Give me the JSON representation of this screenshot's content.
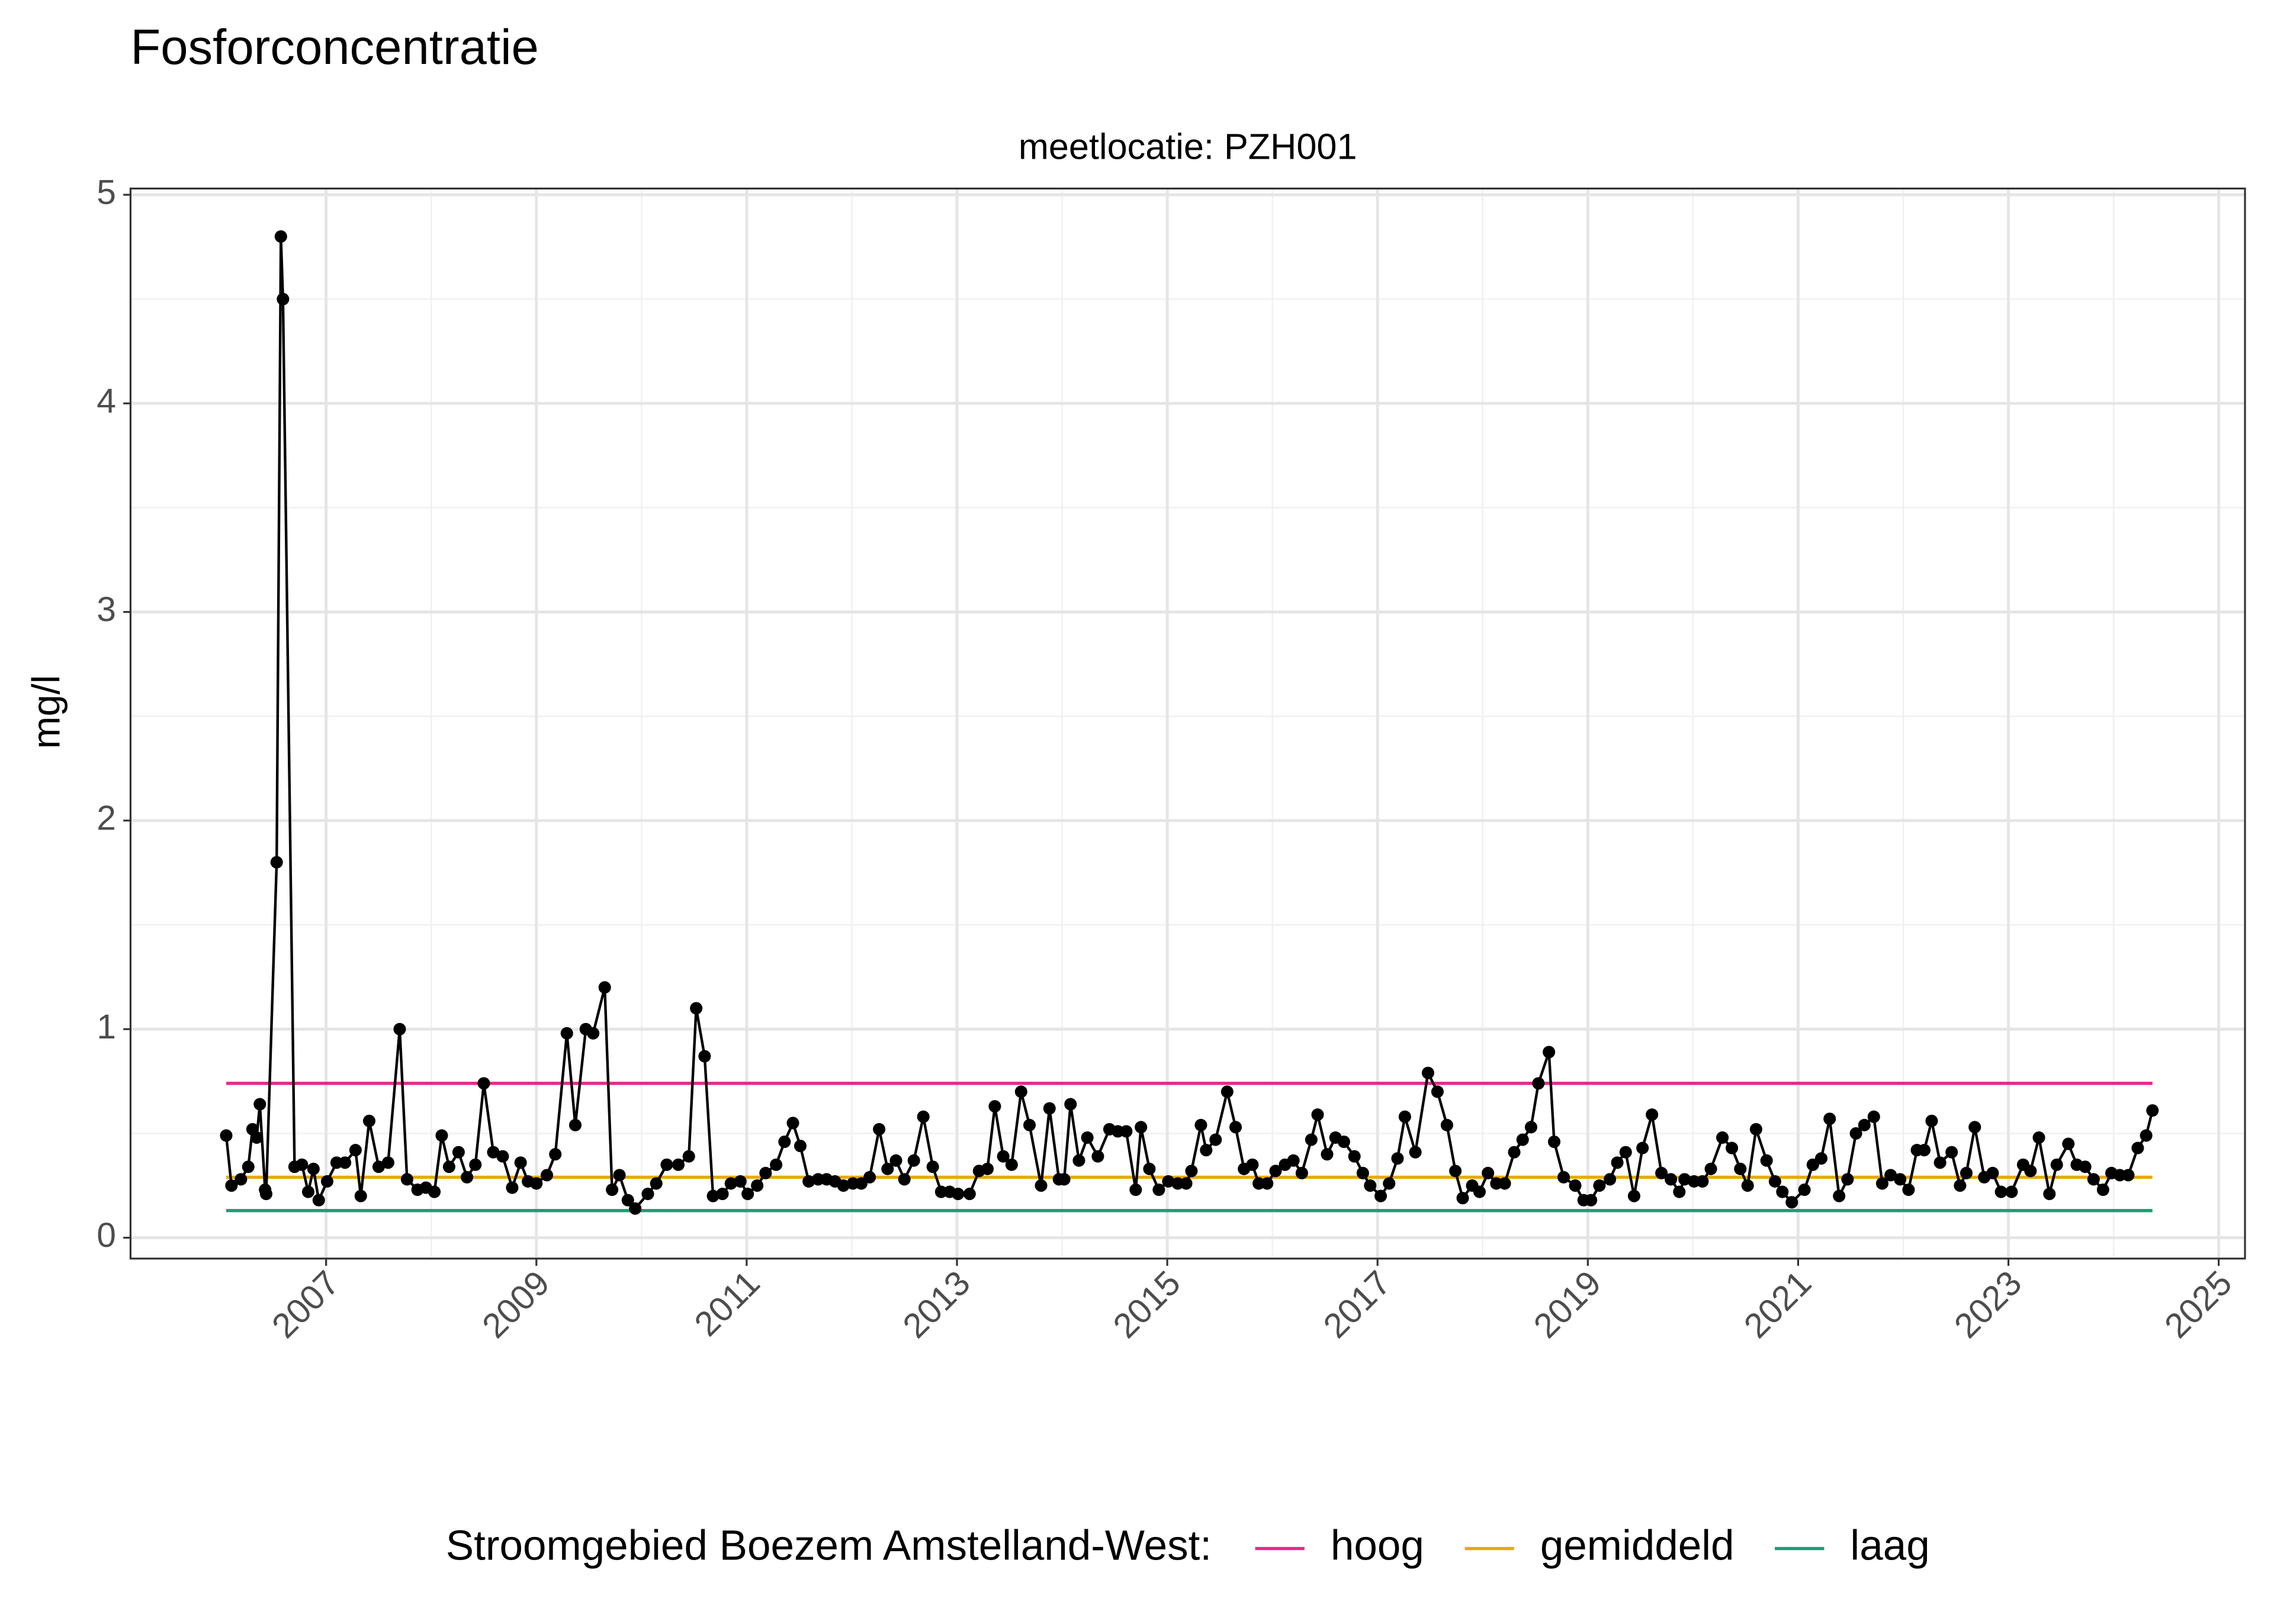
{
  "chart_data": {
    "type": "line",
    "title": "Fosforconcentratie",
    "subtitle": "meetlocatie: PZH001",
    "y_label": "mg/l",
    "legend_title": "Stroomgebied Boezem Amstelland-West:",
    "legend_position": "bottom",
    "grid": true,
    "xlim": [
      2005.14,
      2025.25
    ],
    "xticks": [
      2007,
      2009,
      2011,
      2013,
      2015,
      2017,
      2019,
      2021,
      2023,
      2025
    ],
    "ylim": [
      -0.1,
      5.03
    ],
    "yticks": [
      0,
      1,
      2,
      3,
      4,
      5
    ],
    "x": [
      2006.05,
      2006.1,
      2006.19,
      2006.26,
      2006.3,
      2006.34,
      2006.37,
      2006.42,
      2006.43,
      2006.53,
      2006.57,
      2006.59,
      2006.7,
      2006.77,
      2006.83,
      2006.88,
      2006.93,
      2007.01,
      2007.1,
      2007.18,
      2007.28,
      2007.33,
      2007.41,
      2007.5,
      2007.59,
      2007.7,
      2007.77,
      2007.87,
      2007.95,
      2008.03,
      2008.1,
      2008.17,
      2008.26,
      2008.34,
      2008.42,
      2008.5,
      2008.59,
      2008.68,
      2008.77,
      2008.85,
      2008.92,
      2009.0,
      2009.1,
      2009.18,
      2009.29,
      2009.37,
      2009.47,
      2009.54,
      2009.65,
      2009.72,
      2009.79,
      2009.87,
      2009.94,
      2010.06,
      2010.14,
      2010.24,
      2010.35,
      2010.45,
      2010.52,
      2010.6,
      2010.68,
      2010.77,
      2010.85,
      2010.94,
      2011.01,
      2011.1,
      2011.18,
      2011.28,
      2011.36,
      2011.44,
      2011.51,
      2011.59,
      2011.68,
      2011.76,
      2011.84,
      2011.92,
      2012.01,
      2012.09,
      2012.17,
      2012.26,
      2012.34,
      2012.42,
      2012.5,
      2012.59,
      2012.68,
      2012.77,
      2012.85,
      2012.93,
      2013.01,
      2013.12,
      2013.21,
      2013.29,
      2013.36,
      2013.44,
      2013.52,
      2013.61,
      2013.69,
      2013.8,
      2013.88,
      2013.97,
      2014.02,
      2014.08,
      2014.16,
      2014.24,
      2014.34,
      2014.45,
      2014.53,
      2014.61,
      2014.7,
      2014.75,
      2014.83,
      2014.92,
      2015.01,
      2015.1,
      2015.18,
      2015.23,
      2015.32,
      2015.37,
      2015.46,
      2015.57,
      2015.65,
      2015.73,
      2015.81,
      2015.87,
      2015.95,
      2016.03,
      2016.12,
      2016.2,
      2016.28,
      2016.37,
      2016.43,
      2016.52,
      2016.6,
      2016.68,
      2016.78,
      2016.86,
      2016.93,
      2017.03,
      2017.11,
      2017.19,
      2017.26,
      2017.36,
      2017.48,
      2017.57,
      2017.66,
      2017.74,
      2017.81,
      2017.9,
      2017.97,
      2018.05,
      2018.13,
      2018.21,
      2018.3,
      2018.38,
      2018.46,
      2018.53,
      2018.63,
      2018.68,
      2018.77,
      2018.88,
      2018.96,
      2019.03,
      2019.11,
      2019.21,
      2019.28,
      2019.36,
      2019.44,
      2019.52,
      2019.61,
      2019.7,
      2019.79,
      2019.87,
      2019.92,
      2020.01,
      2020.09,
      2020.17,
      2020.28,
      2020.37,
      2020.45,
      2020.52,
      2020.6,
      2020.7,
      2020.78,
      2020.85,
      2020.94,
      2021.06,
      2021.14,
      2021.22,
      2021.3,
      2021.39,
      2021.47,
      2021.55,
      2021.63,
      2021.72,
      2021.8,
      2021.88,
      2021.97,
      2022.05,
      2022.13,
      2022.2,
      2022.27,
      2022.35,
      2022.46,
      2022.54,
      2022.6,
      2022.68,
      2022.77,
      2022.85,
      2022.93,
      2023.03,
      2023.14,
      2023.21,
      2023.29,
      2023.39,
      2023.46,
      2023.57,
      2023.65,
      2023.73,
      2023.81,
      2023.9,
      2023.98,
      2024.06,
      2024.14,
      2024.23,
      2024.31,
      2024.37
    ],
    "series": [
      {
        "color": "#000000",
        "values": [
          0.49,
          0.25,
          0.28,
          0.34,
          0.52,
          0.48,
          0.64,
          0.23,
          0.21,
          1.8,
          4.8,
          4.5,
          0.34,
          0.35,
          0.22,
          0.33,
          0.18,
          0.27,
          0.36,
          0.36,
          0.42,
          0.2,
          0.56,
          0.34,
          0.36,
          1.0,
          0.28,
          0.23,
          0.24,
          0.22,
          0.49,
          0.34,
          0.41,
          0.29,
          0.35,
          0.74,
          0.41,
          0.39,
          0.24,
          0.36,
          0.27,
          0.26,
          0.3,
          0.4,
          0.98,
          0.54,
          1.0,
          0.98,
          1.2,
          0.23,
          0.3,
          0.18,
          0.14,
          0.21,
          0.26,
          0.35,
          0.35,
          0.39,
          1.1,
          0.87,
          0.2,
          0.21,
          0.26,
          0.27,
          0.21,
          0.25,
          0.31,
          0.35,
          0.46,
          0.55,
          0.44,
          0.27,
          0.28,
          0.28,
          0.27,
          0.25,
          0.26,
          0.26,
          0.29,
          0.52,
          0.33,
          0.37,
          0.28,
          0.37,
          0.58,
          0.34,
          0.22,
          0.22,
          0.21,
          0.21,
          0.32,
          0.33,
          0.63,
          0.39,
          0.35,
          0.7,
          0.54,
          0.25,
          0.62,
          0.28,
          0.28,
          0.64,
          0.37,
          0.48,
          0.39,
          0.52,
          0.51,
          0.51,
          0.23,
          0.53,
          0.33,
          0.23,
          0.27,
          0.26,
          0.26,
          0.32,
          0.54,
          0.42,
          0.47,
          0.7,
          0.53,
          0.33,
          0.35,
          0.26,
          0.26,
          0.32,
          0.35,
          0.37,
          0.31,
          0.47,
          0.59,
          0.4,
          0.48,
          0.46,
          0.39,
          0.31,
          0.25,
          0.2,
          0.26,
          0.38,
          0.58,
          0.41,
          0.79,
          0.7,
          0.54,
          0.32,
          0.19,
          0.25,
          0.22,
          0.31,
          0.26,
          0.26,
          0.41,
          0.47,
          0.53,
          0.74,
          0.89,
          0.46,
          0.29,
          0.25,
          0.18,
          0.18,
          0.25,
          0.28,
          0.36,
          0.41,
          0.2,
          0.43,
          0.59,
          0.31,
          0.28,
          0.22,
          0.28,
          0.27,
          0.27,
          0.33,
          0.48,
          0.43,
          0.33,
          0.25,
          0.52,
          0.37,
          0.27,
          0.22,
          0.17,
          0.23,
          0.35,
          0.38,
          0.57,
          0.2,
          0.28,
          0.5,
          0.54,
          0.58,
          0.26,
          0.3,
          0.28,
          0.23,
          0.42,
          0.42,
          0.56,
          0.36,
          0.41,
          0.25,
          0.31,
          0.53,
          0.29,
          0.31,
          0.22,
          0.22,
          0.35,
          0.32,
          0.48,
          0.21,
          0.35,
          0.45,
          0.35,
          0.34,
          0.28,
          0.23,
          0.31,
          0.3,
          0.3,
          0.43,
          0.49,
          0.61
        ]
      }
    ],
    "reference_lines": [
      {
        "name": "hoog",
        "color": "#e7298a",
        "value": 0.74
      },
      {
        "name": "gemiddeld",
        "color": "#e6ab02",
        "value": 0.29
      },
      {
        "name": "laag",
        "color": "#1b9e77",
        "value": 0.13
      }
    ]
  }
}
